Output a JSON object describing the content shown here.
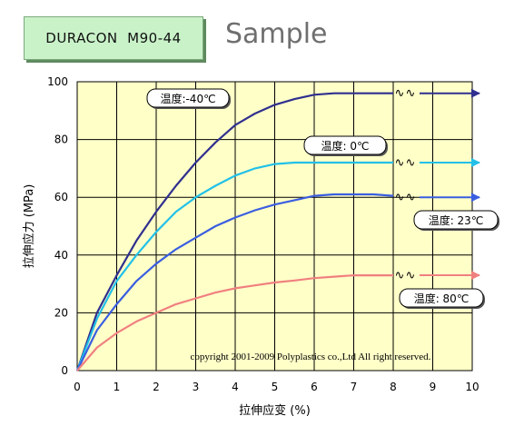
{
  "header": {
    "product": "DURACON  M90-44",
    "title": "Sample"
  },
  "chart_data": {
    "type": "line",
    "xlabel": "拉伸应变 (%)",
    "ylabel": "拉伸应力 (MPa)",
    "xlim": [
      0,
      10
    ],
    "ylim": [
      0,
      100
    ],
    "xticks": [
      "0",
      "1",
      "2",
      "3",
      "4",
      "5",
      "6",
      "7",
      "8",
      "9",
      "10"
    ],
    "yticks": [
      "0",
      "20",
      "40",
      "60",
      "80",
      "100"
    ],
    "grid": true,
    "plot_bg": "#ffffc8",
    "copyright": "copyright 2001-2009 Polyplastics co.,Ltd All right reserved.",
    "break_marks": "∿",
    "series": [
      {
        "name": "温度:-40℃",
        "color": "#2f2f8f",
        "x": [
          0,
          0.5,
          1,
          1.5,
          2,
          2.5,
          3,
          3.5,
          4,
          4.5,
          5,
          5.5,
          6,
          6.5,
          7,
          7.5,
          8
        ],
        "y": [
          0,
          20,
          33,
          45,
          55,
          64,
          72,
          79,
          85,
          89,
          92,
          94,
          95.5,
          96,
          96,
          96,
          96
        ],
        "arrow_y": 96
      },
      {
        "name": "温度: 0℃",
        "color": "#22c0e8",
        "x": [
          0,
          0.5,
          1,
          1.5,
          2,
          2.5,
          3,
          3.5,
          4,
          4.5,
          5,
          5.5,
          6,
          6.5,
          7,
          7.5,
          8
        ],
        "y": [
          0,
          18,
          31,
          40,
          48,
          55,
          60,
          64,
          67.5,
          70,
          71.5,
          72,
          72,
          72,
          72,
          72,
          72
        ],
        "arrow_y": 72
      },
      {
        "name": "温度: 23℃",
        "color": "#3a5ee0",
        "x": [
          0,
          0.5,
          1,
          1.5,
          2,
          2.5,
          3,
          3.5,
          4,
          4.5,
          5,
          5.5,
          6,
          6.5,
          7,
          7.5,
          8
        ],
        "y": [
          0,
          14,
          23,
          31,
          37,
          42,
          46,
          50,
          53,
          55.5,
          57.5,
          59,
          60.5,
          61,
          61,
          61,
          60.5
        ],
        "arrow_y": 60
      },
      {
        "name": "温度: 80℃",
        "color": "#f08080",
        "x": [
          0,
          0.5,
          1,
          1.5,
          2,
          2.5,
          3,
          3.5,
          4,
          4.5,
          5,
          5.5,
          6,
          6.5,
          7,
          7.5,
          8
        ],
        "y": [
          0,
          8,
          13,
          17,
          20,
          23,
          25,
          27,
          28.5,
          29.5,
          30.5,
          31.2,
          32,
          32.5,
          33,
          33,
          33
        ],
        "arrow_y": 33
      }
    ]
  }
}
